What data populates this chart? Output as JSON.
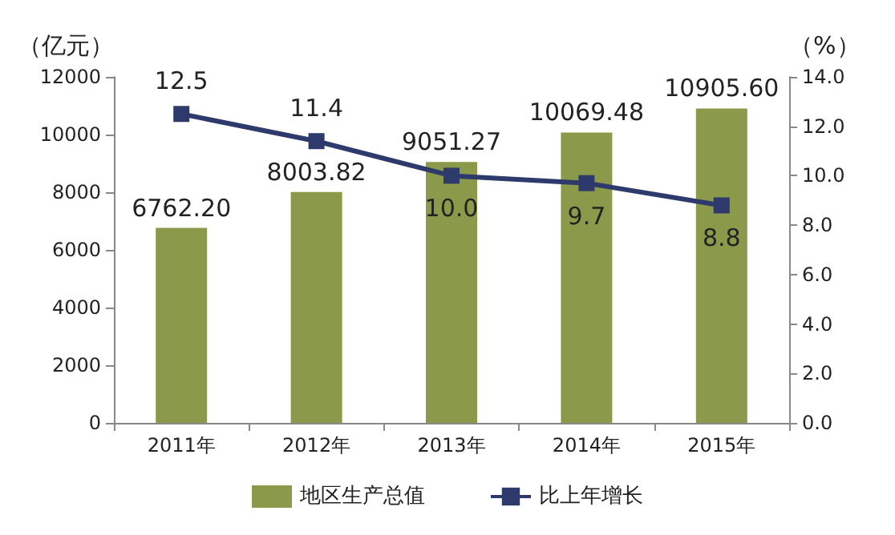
{
  "chart_data": {
    "type": "bar",
    "ylabel": "（亿元）",
    "y2label": "（%）",
    "categories": [
      "2011年",
      "2012年",
      "2013年",
      "2014年",
      "2015年"
    ],
    "series": [
      {
        "name": "地区生产总值",
        "color": "#8a9a4a",
        "values": [
          6762.2,
          8003.82,
          9051.27,
          10069.48,
          10905.6
        ],
        "value_labels": [
          "6762.20",
          "8003.82",
          "9051.27",
          "10069.48",
          "10905.60"
        ]
      },
      {
        "name": "比上年增长",
        "type": "line",
        "axis": "y2",
        "color": "#2e3a6b",
        "marker": "square",
        "values": [
          12.5,
          11.4,
          10.0,
          9.7,
          8.8
        ],
        "value_labels": [
          "12.5",
          "11.4",
          "10.0",
          "9.7",
          "8.8"
        ]
      }
    ],
    "ylim": [
      0,
      12000
    ],
    "yticks": [
      0,
      2000,
      4000,
      6000,
      8000,
      10000,
      12000
    ],
    "y2lim": [
      0,
      14
    ],
    "y2ticks": [
      {
        "value": 0,
        "label": "0.0"
      },
      {
        "value": 2,
        "label": "2.0"
      },
      {
        "value": 4,
        "label": "4.0"
      },
      {
        "value": 6,
        "label": "6.0"
      },
      {
        "value": 8,
        "label": "8.0"
      },
      {
        "value": 10,
        "label": "10.0"
      },
      {
        "value": 12,
        "label": "12.0"
      },
      {
        "value": 14,
        "label": "14.0"
      }
    ],
    "grid": false,
    "legend": "bottom"
  }
}
